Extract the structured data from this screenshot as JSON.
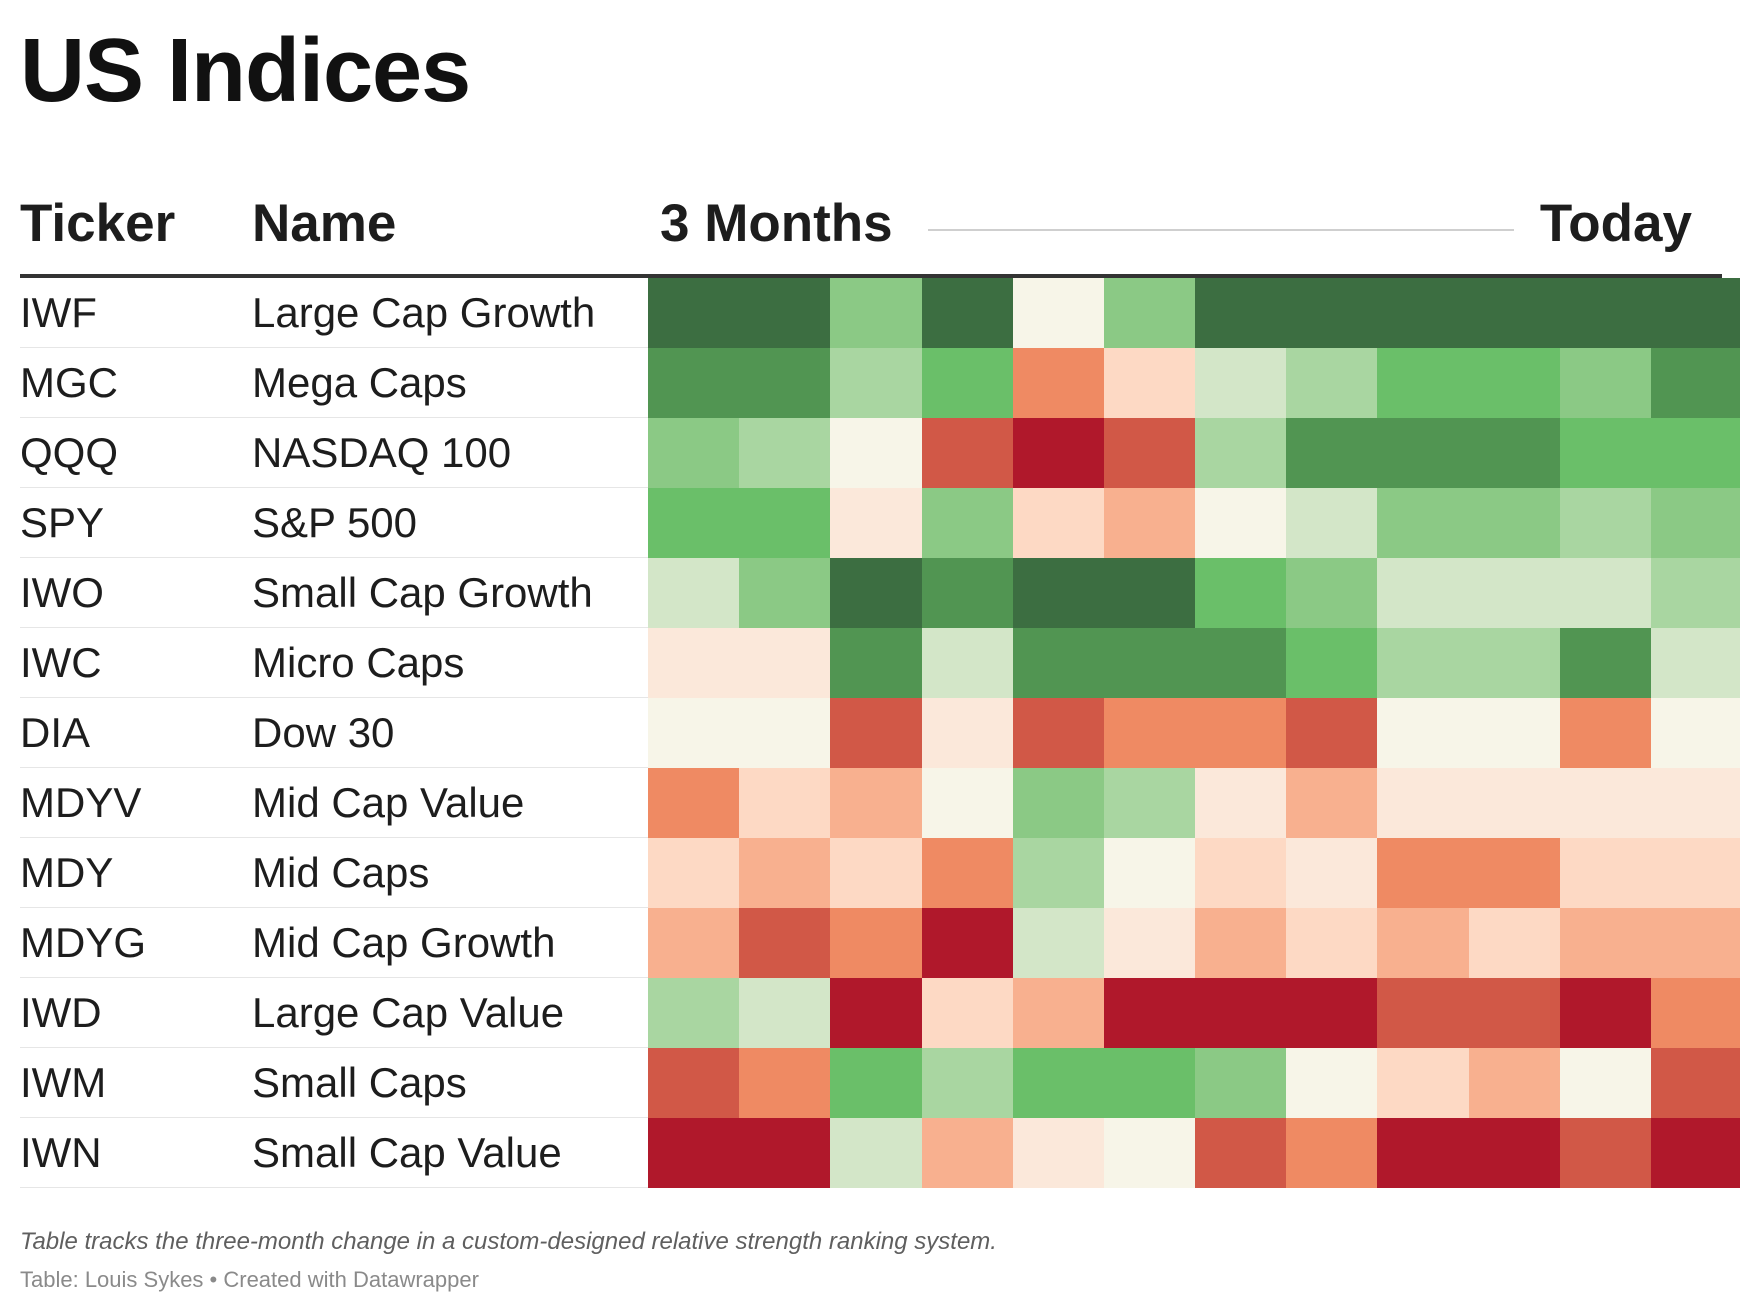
{
  "title": "US Indices",
  "columns": {
    "ticker": "Ticker",
    "name": "Name",
    "start": "3 Months",
    "end": "Today"
  },
  "colors": {
    "-4": "#b0182b",
    "-3": "#d15847",
    "-2": "#ef8a63",
    "-1": "#f8b08f",
    "0": "#fdd9c4",
    "1": "#fbe8da",
    "2": "#f7f5e8",
    "3": "#d3e6c8",
    "4": "#a9d6a1",
    "5": "#8bc985",
    "6": "#6abf69",
    "7": "#519552",
    "8": "#3c6e41"
  },
  "chart_data": {
    "type": "heatmap",
    "title": "US Indices",
    "rows": [
      {
        "ticker": "IWF",
        "name": "Large Cap Growth",
        "values": [
          8,
          8,
          5,
          8,
          2,
          5,
          8,
          8,
          8,
          8,
          8,
          8
        ]
      },
      {
        "ticker": "MGC",
        "name": "Mega Caps",
        "values": [
          7,
          7,
          4,
          6,
          -2,
          0,
          3,
          4,
          6,
          6,
          5,
          7
        ]
      },
      {
        "ticker": "QQQ",
        "name": "NASDAQ 100",
        "values": [
          5,
          4,
          2,
          -3,
          -4,
          -3,
          4,
          7,
          7,
          7,
          6,
          6
        ]
      },
      {
        "ticker": "SPY",
        "name": "S&P 500",
        "values": [
          6,
          6,
          1,
          5,
          0,
          -1,
          2,
          3,
          5,
          5,
          4,
          5
        ]
      },
      {
        "ticker": "IWO",
        "name": "Small Cap Growth",
        "values": [
          3,
          5,
          8,
          7,
          8,
          8,
          6,
          5,
          3,
          3,
          3,
          4
        ]
      },
      {
        "ticker": "IWC",
        "name": "Micro Caps",
        "values": [
          1,
          1,
          7,
          3,
          7,
          7,
          7,
          6,
          4,
          4,
          7,
          3
        ]
      },
      {
        "ticker": "DIA",
        "name": "Dow 30",
        "values": [
          2,
          2,
          -3,
          1,
          -3,
          -2,
          -2,
          -3,
          2,
          2,
          -2,
          2
        ]
      },
      {
        "ticker": "MDYV",
        "name": "Mid Cap Value",
        "values": [
          -2,
          0,
          -1,
          2,
          5,
          4,
          1,
          -1,
          1,
          1,
          1,
          1
        ]
      },
      {
        "ticker": "MDY",
        "name": "Mid Caps",
        "values": [
          0,
          -1,
          0,
          -2,
          4,
          2,
          0,
          1,
          -2,
          -2,
          0,
          0
        ]
      },
      {
        "ticker": "MDYG",
        "name": "Mid Cap Growth",
        "values": [
          -1,
          -3,
          -2,
          -4,
          3,
          1,
          -1,
          0,
          -1,
          0,
          -1,
          -1
        ]
      },
      {
        "ticker": "IWD",
        "name": "Large Cap Value",
        "values": [
          4,
          3,
          -4,
          0,
          -1,
          -4,
          -4,
          -4,
          -3,
          -3,
          -4,
          -2
        ]
      },
      {
        "ticker": "IWM",
        "name": "Small Caps",
        "values": [
          -3,
          -2,
          6,
          4,
          6,
          6,
          5,
          2,
          0,
          -1,
          2,
          -3
        ]
      },
      {
        "ticker": "IWN",
        "name": "Small Cap Value",
        "values": [
          -4,
          -4,
          3,
          -1,
          1,
          2,
          -3,
          -2,
          -4,
          -4,
          -3,
          -4
        ]
      }
    ],
    "periods": 12,
    "x_range": [
      "3 Months",
      "Today"
    ]
  },
  "footer": {
    "notes": "Table tracks the three-month change in a custom-designed relative strength ranking system.",
    "source": "Table: Louis Sykes • Created with Datawrapper"
  }
}
